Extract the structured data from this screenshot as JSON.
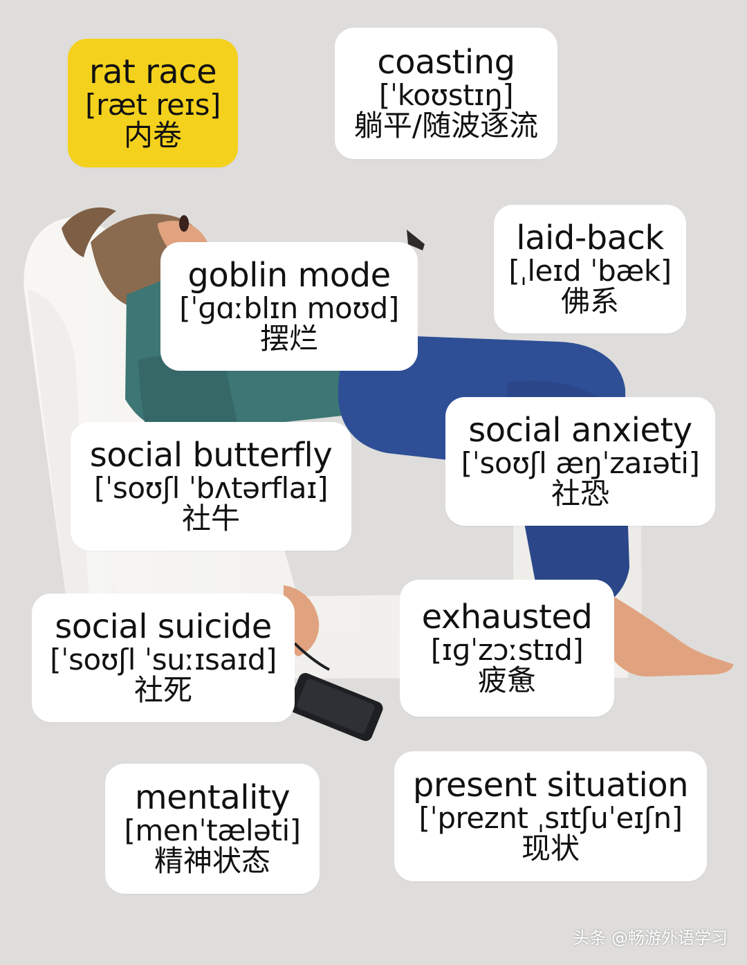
{
  "cards": [
    {
      "term": "rat race",
      "ipa": "[ræt reɪs]",
      "meaning": "内卷",
      "accent": "#f4d11d"
    },
    {
      "term": "coasting",
      "ipa": "[ˈkoʊstɪŋ]",
      "meaning": "躺平/随波逐流",
      "accent": "#ffffff"
    },
    {
      "term": "laid-back",
      "ipa": "[ˌleɪd ˈbæk]",
      "meaning": "佛系",
      "accent": "#ffffff"
    },
    {
      "term": "goblin mode",
      "ipa": "[ˈɡɑːblɪn moʊd]",
      "meaning": "摆烂",
      "accent": "#ffffff"
    },
    {
      "term": "social anxiety",
      "ipa": "[ˈsoʊʃl æŋˈzaɪəti]",
      "meaning": "社恐",
      "accent": "#ffffff"
    },
    {
      "term": "social butterfly",
      "ipa": "[ˈsoʊʃl ˈbʌtərflaɪ]",
      "meaning": "社牛",
      "accent": "#ffffff"
    },
    {
      "term": "social suicide",
      "ipa": "[ˈsoʊʃl ˈsuːɪsaɪd]",
      "meaning": "社死",
      "accent": "#ffffff"
    },
    {
      "term": "exhausted",
      "ipa": "[ɪɡˈzɔːstɪd]",
      "meaning": "疲惫",
      "accent": "#ffffff"
    },
    {
      "term": "mentality",
      "ipa": "[menˈtæləti]",
      "meaning": "精神状态",
      "accent": "#ffffff"
    },
    {
      "term": "present situation",
      "ipa": "[ˈpreznt ˌsɪtʃuˈeɪʃn]",
      "meaning": "现状",
      "accent": "#ffffff"
    }
  ],
  "watermark": "头条 @畅游外语学习",
  "colors": {
    "background": "#dedddb",
    "card_yellow": "#f4d11d",
    "card_white": "#ffffff",
    "sweater": "#3d7674",
    "pants": "#2e4f96",
    "hair": "#8b6b4f",
    "skin": "#e1a37f",
    "chair": "#f5f4f1"
  }
}
